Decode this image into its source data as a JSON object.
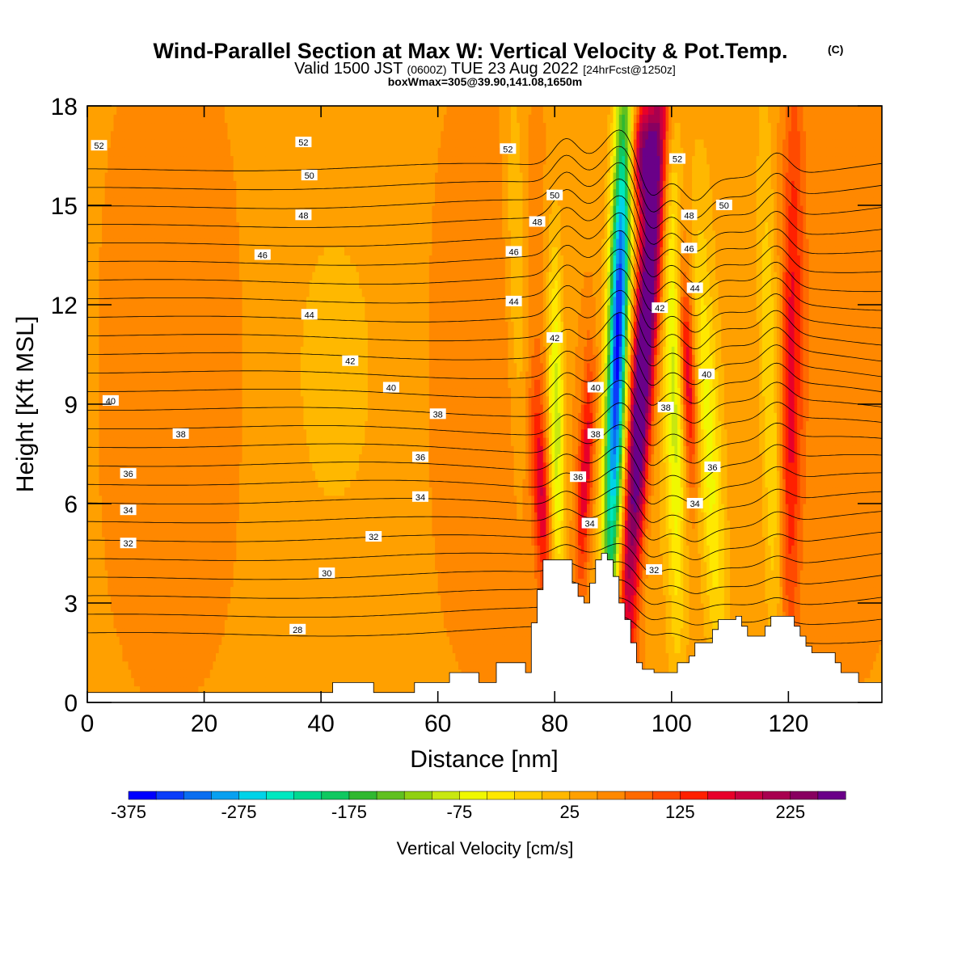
{
  "header": {
    "title": "Wind-Parallel Section at Max W: Vertical Velocity & Pot.Temp.",
    "title_units": "(C)",
    "valid_main": "Valid 1500 JST",
    "valid_utc": "(0600Z)",
    "valid_date": "TUE 23 Aug 2022",
    "forecast": "[24hrFcst@1250z]",
    "boxwmax": "boxWmax=305@39.90,141.08,1650m"
  },
  "colorbar": {
    "label": "Vertical Velocity [cm/s]",
    "tick_labels": [
      "-375",
      "-275",
      "-175",
      "-75",
      "25",
      "125",
      "225"
    ],
    "tick_values": [
      -375,
      -275,
      -175,
      -75,
      25,
      125,
      225
    ],
    "colors": [
      "#0000ff",
      "#0b3dfa",
      "#0a6ef0",
      "#08a0f0",
      "#00d3e8",
      "#00e8c0",
      "#00d890",
      "#10c860",
      "#30b830",
      "#60c020",
      "#90d010",
      "#c8e810",
      "#f0f800",
      "#ffe800",
      "#ffd000",
      "#ffb800",
      "#ffa000",
      "#ff8800",
      "#ff6a00",
      "#ff4a00",
      "#ff2000",
      "#e8002a",
      "#c80040",
      "#a8004f",
      "#880060",
      "#6a0088"
    ]
  },
  "chart_data": {
    "type": "heatmap",
    "xlabel": "Distance [nm]",
    "ylabel": "Height [Kft MSL]",
    "xlim": [
      0,
      136
    ],
    "ylim": [
      0,
      18
    ],
    "x_ticks": [
      0,
      20,
      40,
      60,
      80,
      100,
      120
    ],
    "y_ticks": [
      0,
      3,
      6,
      9,
      12,
      15,
      18
    ],
    "background_w": 20,
    "w_features": [
      {
        "x0": 92.5,
        "xt": 98,
        "y0": 3,
        "y1": 18,
        "amp": 300,
        "sx": 2.0
      },
      {
        "x0": 89.5,
        "xt": 92,
        "y0": 3.5,
        "y1": 18,
        "amp": -390,
        "sx": 1.7
      },
      {
        "x0": 80.5,
        "xt": 80,
        "y0": 4,
        "y1": 13,
        "amp": -150,
        "sx": 1.4
      },
      {
        "x0": 78.5,
        "xt": 77,
        "y0": 3.5,
        "y1": 9,
        "amp": 120,
        "sx": 1.5
      },
      {
        "x0": 84.5,
        "xt": 86,
        "y0": 4,
        "y1": 10,
        "amp": 130,
        "sx": 1.3
      },
      {
        "x0": 103.5,
        "xt": 102,
        "y0": 7,
        "y1": 13,
        "amp": 160,
        "sx": 1.4
      },
      {
        "x0": 101,
        "xt": 100,
        "y0": 3,
        "y1": 16,
        "amp": -110,
        "sx": 1.6
      },
      {
        "x0": 108,
        "xt": 105,
        "y0": 2,
        "y1": 13,
        "amp": -90,
        "sx": 2.0
      },
      {
        "x0": 118,
        "xt": 116,
        "y0": 1.5,
        "y1": 16,
        "amp": -80,
        "sx": 1.8
      },
      {
        "x0": 120,
        "xt": 121,
        "y0": 1.5,
        "y1": 18,
        "amp": 100,
        "sx": 1.8
      },
      {
        "x0": 74,
        "xt": 73,
        "y0": 8,
        "y1": 18,
        "amp": -60,
        "sx": 1.8
      },
      {
        "x0": 95,
        "xt": 95,
        "y0": 15,
        "y1": 18,
        "amp": 180,
        "sx": 2.2
      }
    ],
    "theta_levels": [
      28,
      29,
      30,
      31,
      32,
      33,
      34,
      35,
      36,
      37,
      38,
      39,
      40,
      41,
      42,
      43,
      44,
      45,
      46,
      47,
      48,
      49,
      50,
      51,
      52,
      53
    ],
    "theta_labels": [
      {
        "text": "52",
        "x": 2,
        "y": 16.8
      },
      {
        "text": "52",
        "x": 37,
        "y": 16.9
      },
      {
        "text": "52",
        "x": 72,
        "y": 16.7
      },
      {
        "text": "52",
        "x": 101,
        "y": 16.4
      },
      {
        "text": "50",
        "x": 38,
        "y": 15.9
      },
      {
        "text": "50",
        "x": 80,
        "y": 15.3
      },
      {
        "text": "50",
        "x": 109,
        "y": 15.0
      },
      {
        "text": "48",
        "x": 37,
        "y": 14.7
      },
      {
        "text": "48",
        "x": 77,
        "y": 14.5
      },
      {
        "text": "48",
        "x": 103,
        "y": 14.7
      },
      {
        "text": "46",
        "x": 30,
        "y": 13.5
      },
      {
        "text": "46",
        "x": 73,
        "y": 13.6
      },
      {
        "text": "46",
        "x": 103,
        "y": 13.7
      },
      {
        "text": "44",
        "x": 38,
        "y": 11.7
      },
      {
        "text": "44",
        "x": 73,
        "y": 12.1
      },
      {
        "text": "44",
        "x": 104,
        "y": 12.5
      },
      {
        "text": "42",
        "x": 45,
        "y": 10.3
      },
      {
        "text": "42",
        "x": 80,
        "y": 11.0
      },
      {
        "text": "42",
        "x": 98,
        "y": 11.9
      },
      {
        "text": "40",
        "x": 4,
        "y": 9.1
      },
      {
        "text": "40",
        "x": 52,
        "y": 9.5
      },
      {
        "text": "40",
        "x": 87,
        "y": 9.5
      },
      {
        "text": "40",
        "x": 106,
        "y": 9.9
      },
      {
        "text": "38",
        "x": 16,
        "y": 8.1
      },
      {
        "text": "38",
        "x": 60,
        "y": 8.7
      },
      {
        "text": "38",
        "x": 87,
        "y": 8.1
      },
      {
        "text": "38",
        "x": 99,
        "y": 8.9
      },
      {
        "text": "36",
        "x": 7,
        "y": 6.9
      },
      {
        "text": "36",
        "x": 57,
        "y": 7.4
      },
      {
        "text": "36",
        "x": 84,
        "y": 6.8
      },
      {
        "text": "36",
        "x": 107,
        "y": 7.1
      },
      {
        "text": "34",
        "x": 7,
        "y": 5.8
      },
      {
        "text": "34",
        "x": 57,
        "y": 6.2
      },
      {
        "text": "34",
        "x": 86,
        "y": 5.4
      },
      {
        "text": "34",
        "x": 104,
        "y": 6.0
      },
      {
        "text": "32",
        "x": 7,
        "y": 4.8
      },
      {
        "text": "32",
        "x": 49,
        "y": 5.0
      },
      {
        "text": "32",
        "x": 97,
        "y": 4.0
      },
      {
        "text": "30",
        "x": 41,
        "y": 3.9
      },
      {
        "text": "28",
        "x": 36,
        "y": 2.2
      }
    ],
    "terrain": [
      [
        0,
        0.3
      ],
      [
        41,
        0.3
      ],
      [
        42,
        0.6
      ],
      [
        48,
        0.6
      ],
      [
        49,
        0.3
      ],
      [
        55,
        0.3
      ],
      [
        56,
        0.6
      ],
      [
        61,
        0.6
      ],
      [
        62,
        0.9
      ],
      [
        66,
        0.9
      ],
      [
        67,
        0.6
      ],
      [
        69,
        0.6
      ],
      [
        70,
        1.2
      ],
      [
        74,
        1.2
      ],
      [
        75,
        0.9
      ],
      [
        76,
        2.4
      ],
      [
        77,
        3.4
      ],
      [
        78,
        4.3
      ],
      [
        82,
        4.3
      ],
      [
        83,
        3.6
      ],
      [
        84,
        3.2
      ],
      [
        85,
        3.0
      ],
      [
        86,
        3.6
      ],
      [
        87,
        4.3
      ],
      [
        88,
        4.5
      ],
      [
        89,
        4.3
      ],
      [
        90,
        3.8
      ],
      [
        91,
        3.0
      ],
      [
        92,
        2.5
      ],
      [
        93,
        1.8
      ],
      [
        94,
        1.2
      ],
      [
        95,
        1.0
      ],
      [
        96,
        1.0
      ],
      [
        97,
        0.9
      ],
      [
        100,
        0.9
      ],
      [
        101,
        1.2
      ],
      [
        103,
        1.4
      ],
      [
        104,
        1.8
      ],
      [
        107,
        2.2
      ],
      [
        108,
        2.5
      ],
      [
        111,
        2.6
      ],
      [
        112,
        2.3
      ],
      [
        113,
        2.0
      ],
      [
        115,
        2.0
      ],
      [
        116,
        2.3
      ],
      [
        117,
        2.6
      ],
      [
        120,
        2.6
      ],
      [
        121,
        2.3
      ],
      [
        122,
        2.0
      ],
      [
        123,
        1.7
      ],
      [
        124,
        1.5
      ],
      [
        127,
        1.5
      ],
      [
        128,
        1.2
      ],
      [
        129,
        0.9
      ],
      [
        131,
        0.9
      ],
      [
        132,
        0.6
      ],
      [
        136,
        0.6
      ]
    ]
  }
}
